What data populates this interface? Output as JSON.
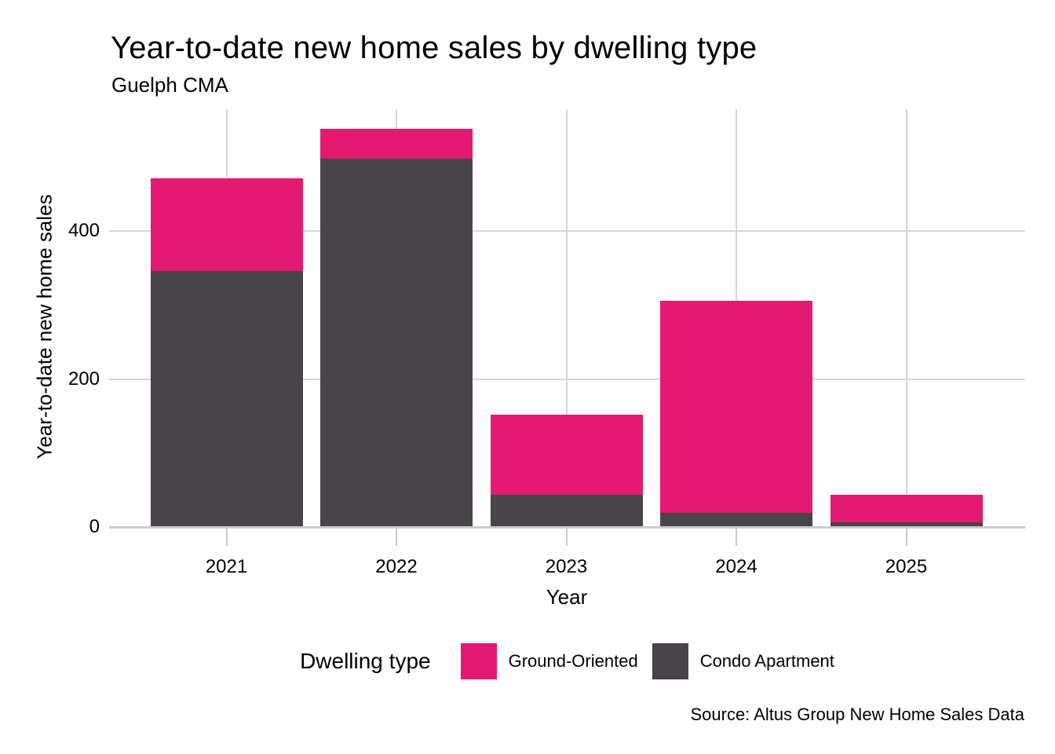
{
  "chart_data": {
    "type": "bar",
    "stacked": true,
    "title": "Year-to-date new home sales by dwelling type",
    "subtitle": "Guelph CMA",
    "categories": [
      "2021",
      "2022",
      "2023",
      "2024",
      "2025"
    ],
    "series": [
      {
        "name": "Ground-Oriented",
        "color": "#E31A70",
        "values": [
          125,
          40,
          108,
          287,
          38
        ]
      },
      {
        "name": "Condo Apartment",
        "color": "#484449",
        "values": [
          346,
          498,
          44,
          19,
          6
        ]
      }
    ],
    "stack_order_bottom_to_top": [
      "Condo Apartment",
      "Ground-Oriented"
    ],
    "totals": [
      471,
      538,
      152,
      306,
      44
    ],
    "xlabel": "Year",
    "ylabel": "Year-to-date new home sales",
    "yticks": [
      0,
      200,
      400
    ],
    "ylim": [
      0,
      564
    ],
    "grid": true,
    "legend": {
      "title": "Dwelling type",
      "position": "bottom"
    },
    "source": "Source: Altus Group New Home Sales Data"
  },
  "colors": {
    "ground_oriented": "#E31A70",
    "condo_apartment": "#484449",
    "gridline": "#D6D6D6",
    "axis_line": "#CBCBCB",
    "text": "#000000"
  }
}
